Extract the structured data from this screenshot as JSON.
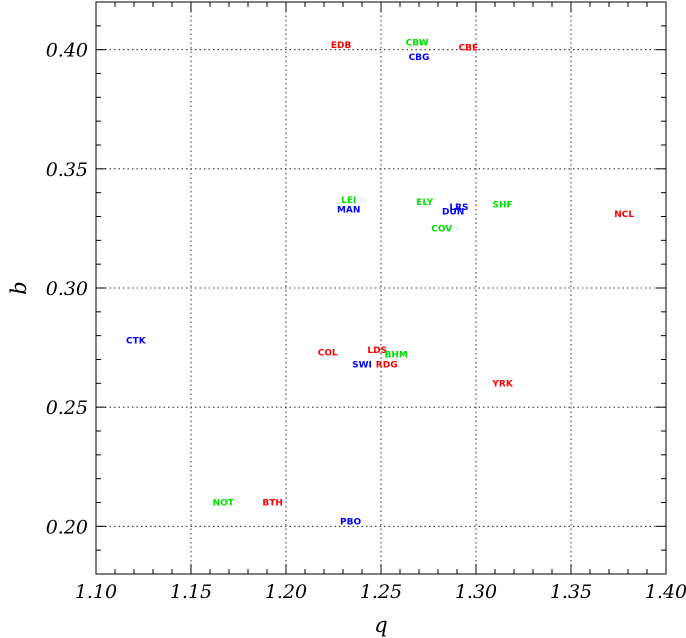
{
  "chart_data": {
    "type": "scatter",
    "xlabel": "q",
    "ylabel": "b",
    "xlim": [
      1.1,
      1.4
    ],
    "ylim": [
      0.18,
      0.42
    ],
    "xticks": [
      "1.10",
      "1.15",
      "1.20",
      "1.25",
      "1.30",
      "1.35",
      "1.40"
    ],
    "yticks": [
      "0.20",
      "0.25",
      "0.30",
      "0.35",
      "0.40"
    ],
    "grid": true,
    "colors": {
      "red": "#ff0000",
      "green": "#00e000",
      "blue": "#0000ff"
    },
    "points": [
      {
        "label": "EDB",
        "x": 1.229,
        "y": 0.402,
        "color": "red"
      },
      {
        "label": "CBW",
        "x": 1.269,
        "y": 0.403,
        "color": "green"
      },
      {
        "label": "CBE",
        "x": 1.296,
        "y": 0.401,
        "color": "red"
      },
      {
        "label": "CBG",
        "x": 1.27,
        "y": 0.397,
        "color": "blue"
      },
      {
        "label": "LEI",
        "x": 1.233,
        "y": 0.337,
        "color": "green"
      },
      {
        "label": "MAN",
        "x": 1.233,
        "y": 0.333,
        "color": "blue"
      },
      {
        "label": "ELY",
        "x": 1.273,
        "y": 0.336,
        "color": "green"
      },
      {
        "label": "LRS",
        "x": 1.291,
        "y": 0.334,
        "color": "blue"
      },
      {
        "label": "DUN",
        "x": 1.288,
        "y": 0.332,
        "color": "blue"
      },
      {
        "label": "SHF",
        "x": 1.314,
        "y": 0.335,
        "color": "green"
      },
      {
        "label": "NCL",
        "x": 1.378,
        "y": 0.331,
        "color": "red"
      },
      {
        "label": "COV",
        "x": 1.282,
        "y": 0.325,
        "color": "green"
      },
      {
        "label": "CTK",
        "x": 1.121,
        "y": 0.278,
        "color": "blue"
      },
      {
        "label": "COL",
        "x": 1.222,
        "y": 0.273,
        "color": "red"
      },
      {
        "label": "LDS",
        "x": 1.248,
        "y": 0.274,
        "color": "red"
      },
      {
        "label": "BHM",
        "x": 1.258,
        "y": 0.272,
        "color": "green"
      },
      {
        "label": "RDG",
        "x": 1.253,
        "y": 0.268,
        "color": "red"
      },
      {
        "label": "SWI",
        "x": 1.24,
        "y": 0.268,
        "color": "blue"
      },
      {
        "label": "YRK",
        "x": 1.314,
        "y": 0.26,
        "color": "red"
      },
      {
        "label": "NOT",
        "x": 1.167,
        "y": 0.21,
        "color": "green"
      },
      {
        "label": "BTH",
        "x": 1.193,
        "y": 0.21,
        "color": "red"
      },
      {
        "label": "PBO",
        "x": 1.234,
        "y": 0.202,
        "color": "blue"
      }
    ]
  }
}
